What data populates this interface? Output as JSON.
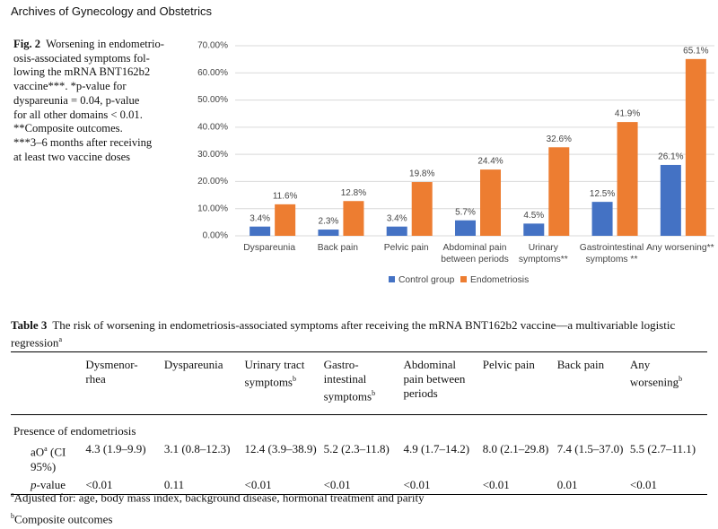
{
  "header": {
    "journal": "Archives of Gynecology and Obstetrics"
  },
  "figure": {
    "label": "Fig. 2",
    "caption_lines": [
      "Worsening in endometrio-",
      "osis-associated symptoms fol-",
      "lowing the mRNA BNT162b2",
      "vaccine***. *p-value for",
      "dyspareunia = 0.04, p-value",
      "for all other domains < 0.01.",
      "**Composite outcomes.",
      "***3–6 months after receiving",
      "at least two vaccine doses"
    ]
  },
  "chart_data": {
    "type": "bar",
    "categories": [
      "Dyspareunia",
      "Back pain",
      "Pelvic pain",
      "Abdominal pain between periods",
      "Urinary symptoms**",
      "Gastrointestinal symptoms **",
      "Any worsening**"
    ],
    "series": [
      {
        "name": "Control group",
        "color": "#4472c4",
        "values": [
          3.4,
          2.3,
          3.4,
          5.7,
          4.5,
          12.5,
          26.1
        ],
        "value_labels": [
          "3.4%",
          "2.3%",
          "3.4%",
          "5.7%",
          "4.5%",
          "12.5%",
          "26.1%"
        ]
      },
      {
        "name": "Endometriosis",
        "color": "#ed7d31",
        "values": [
          11.6,
          12.8,
          19.8,
          24.4,
          32.6,
          41.9,
          65.1
        ],
        "value_labels": [
          "11.6%",
          "12.8%",
          "19.8%",
          "24.4%",
          "32.6%",
          "41.9%",
          "65.1%"
        ]
      }
    ],
    "ylim": [
      0,
      70
    ],
    "yticks": [
      {
        "value": 0,
        "label": "0.00%"
      },
      {
        "value": 10,
        "label": "10.00%"
      },
      {
        "value": 20,
        "label": "20.00%"
      },
      {
        "value": 30,
        "label": "30.00%"
      },
      {
        "value": 40,
        "label": "40.00%"
      },
      {
        "value": 50,
        "label": "50.00%"
      },
      {
        "value": 60,
        "label": "60.00%"
      },
      {
        "value": 70,
        "label": "70.00%"
      }
    ],
    "grid": true,
    "legend": "bottom"
  },
  "table": {
    "label": "Table 3",
    "title": "The risk of worsening in endometriosis-associated symptoms after receiving the mRNA BNT162b2 vaccine—a multivariable logistic regression",
    "title_note": "a",
    "headers": [
      {
        "text": "Dysmenor-rhea"
      },
      {
        "text": "Dyspareunia"
      },
      {
        "text": "Urinary tract symptoms",
        "note": "b"
      },
      {
        "text": "Gastro-intestinal symptoms",
        "note": "b"
      },
      {
        "text": "Abdominal pain between periods"
      },
      {
        "text": "Pelvic pain"
      },
      {
        "text": "Back pain"
      },
      {
        "text": "Any worsening",
        "note": "b"
      }
    ],
    "section": "Presence of endometriosis",
    "rows": [
      {
        "label": "aO",
        "label_note": "a",
        "label_rest": " (CI 95%)",
        "cells": [
          "4.3 (1.9–9.9)",
          "3.1 (0.8–12.3)",
          "12.4 (3.9–38.9)",
          "5.2 (2.3–11.8)",
          "4.9 (1.7–14.2)",
          "8.0 (2.1–29.8)",
          "7.4 (1.5–37.0)",
          "5.5 (2.7–11.1)"
        ]
      },
      {
        "label": "p",
        "label_rest": "-value",
        "cells": [
          "<0.01",
          "0.11",
          "<0.01",
          "<0.01",
          "<0.01",
          "<0.01",
          "0.01",
          "<0.01"
        ]
      }
    ]
  },
  "footnotes": [
    {
      "mark": "a",
      "text": "Adjusted for: age, body mass index, background disease, hormonal treatment and parity"
    },
    {
      "mark": "b",
      "text": "Composite outcomes"
    }
  ]
}
